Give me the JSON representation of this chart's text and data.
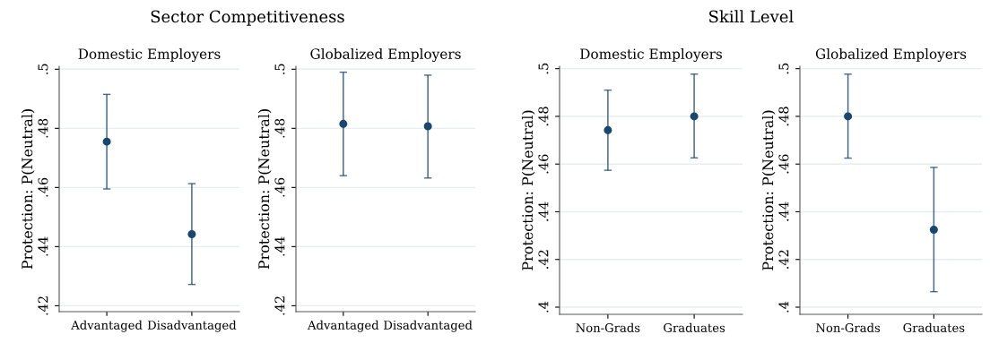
{
  "chart_data": [
    {
      "type": "scatter",
      "title": "Sector Competitiveness",
      "subtitle": "Domestic Employers",
      "ylabel": "Protection: P(Neutral)",
      "categories": [
        "Advantaged",
        "Disadvantaged"
      ],
      "series": [
        {
          "color": "#1a476f",
          "values": [
            0.4755,
            0.4442
          ],
          "errors": [
            [
              0.4595,
              0.4915
            ],
            [
              0.4272,
              0.4613
            ]
          ]
        }
      ],
      "ylim": [
        0.418,
        0.501
      ],
      "yticks": [
        {
          "value": 0.42,
          "label": ".42"
        },
        {
          "value": 0.44,
          "label": ".44"
        },
        {
          "value": 0.46,
          "label": ".46"
        },
        {
          "value": 0.48,
          "label": ".48"
        },
        {
          "value": 0.5,
          "label": ".5"
        }
      ],
      "grid": "y",
      "marker": "circle"
    },
    {
      "type": "scatter",
      "subtitle": "Globalized Employers",
      "ylabel": "Protection: P(Neutral)",
      "categories": [
        "Advantaged",
        "Disadvantaged"
      ],
      "series": [
        {
          "color": "#1a476f",
          "values": [
            0.4815,
            0.4807
          ],
          "errors": [
            [
              0.464,
              0.499
            ],
            [
              0.4632,
              0.498
            ]
          ]
        }
      ],
      "ylim": [
        0.418,
        0.501
      ],
      "yticks": [
        {
          "value": 0.42,
          "label": ".42"
        },
        {
          "value": 0.44,
          "label": ".44"
        },
        {
          "value": 0.46,
          "label": ".46"
        },
        {
          "value": 0.48,
          "label": ".48"
        },
        {
          "value": 0.5,
          "label": ".5"
        }
      ],
      "grid": "y",
      "marker": "circle"
    },
    {
      "type": "scatter",
      "title": "Skill Level",
      "subtitle": "Domestic Employers",
      "ylabel": "Protection: P(Neutral)",
      "categories": [
        "Non-Grads",
        "Graduates"
      ],
      "series": [
        {
          "color": "#1a476f",
          "values": [
            0.4742,
            0.48
          ],
          "errors": [
            [
              0.4574,
              0.491
            ],
            [
              0.4626,
              0.4977
            ]
          ]
        }
      ],
      "ylim": [
        0.397,
        0.501
      ],
      "yticks": [
        {
          "value": 0.4,
          "label": ".4"
        },
        {
          "value": 0.42,
          "label": ".42"
        },
        {
          "value": 0.44,
          "label": ".44"
        },
        {
          "value": 0.46,
          "label": ".46"
        },
        {
          "value": 0.48,
          "label": ".48"
        },
        {
          "value": 0.5,
          "label": ".5"
        }
      ],
      "grid": "y",
      "marker": "circle"
    },
    {
      "type": "scatter",
      "subtitle": "Globalized Employers",
      "ylabel": "Protection: P(Neutral)",
      "categories": [
        "Non-Grads",
        "Graduates"
      ],
      "series": [
        {
          "color": "#1a476f",
          "values": [
            0.48,
            0.4325
          ],
          "errors": [
            [
              0.4625,
              0.4977
            ],
            [
              0.4065,
              0.4586
            ]
          ]
        }
      ],
      "ylim": [
        0.397,
        0.501
      ],
      "yticks": [
        {
          "value": 0.4,
          "label": ".4"
        },
        {
          "value": 0.42,
          "label": ".42"
        },
        {
          "value": 0.44,
          "label": ".44"
        },
        {
          "value": 0.46,
          "label": ".46"
        },
        {
          "value": 0.48,
          "label": ".48"
        },
        {
          "value": 0.5,
          "label": ".5"
        }
      ],
      "grid": "y",
      "marker": "circle"
    }
  ]
}
